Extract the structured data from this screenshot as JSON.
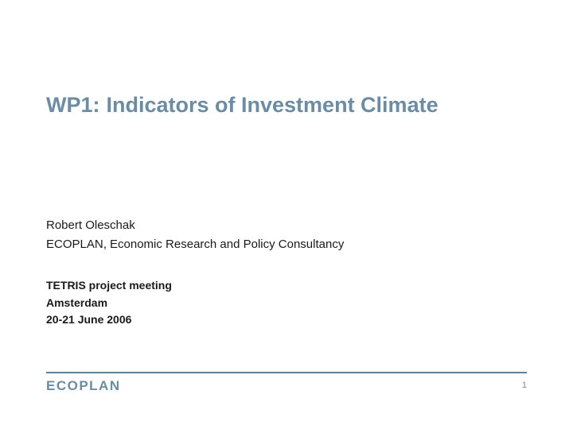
{
  "slide": {
    "title_prefix": "WP1:",
    "title_main": "Indicators of Investment Climate",
    "author": "Robert Oleschak",
    "organization": "ECOPLAN, Economic Research and Policy Consultancy",
    "meeting_name": "TETRIS project meeting",
    "meeting_location": "Amsterdam",
    "meeting_date": "20-21 June 2006",
    "footer_logo": "ECOPLAN",
    "page_number": "1"
  },
  "style": {
    "title_color": "#6b8ca3",
    "rule_color": "#5f8099",
    "background_color": "#ffffff",
    "body_color": "#1a1a1a",
    "page_num_color": "#888888",
    "title_fontsize": 27,
    "body_fontsize": 15,
    "meeting_fontsize": 14,
    "logo_fontsize": 17
  }
}
